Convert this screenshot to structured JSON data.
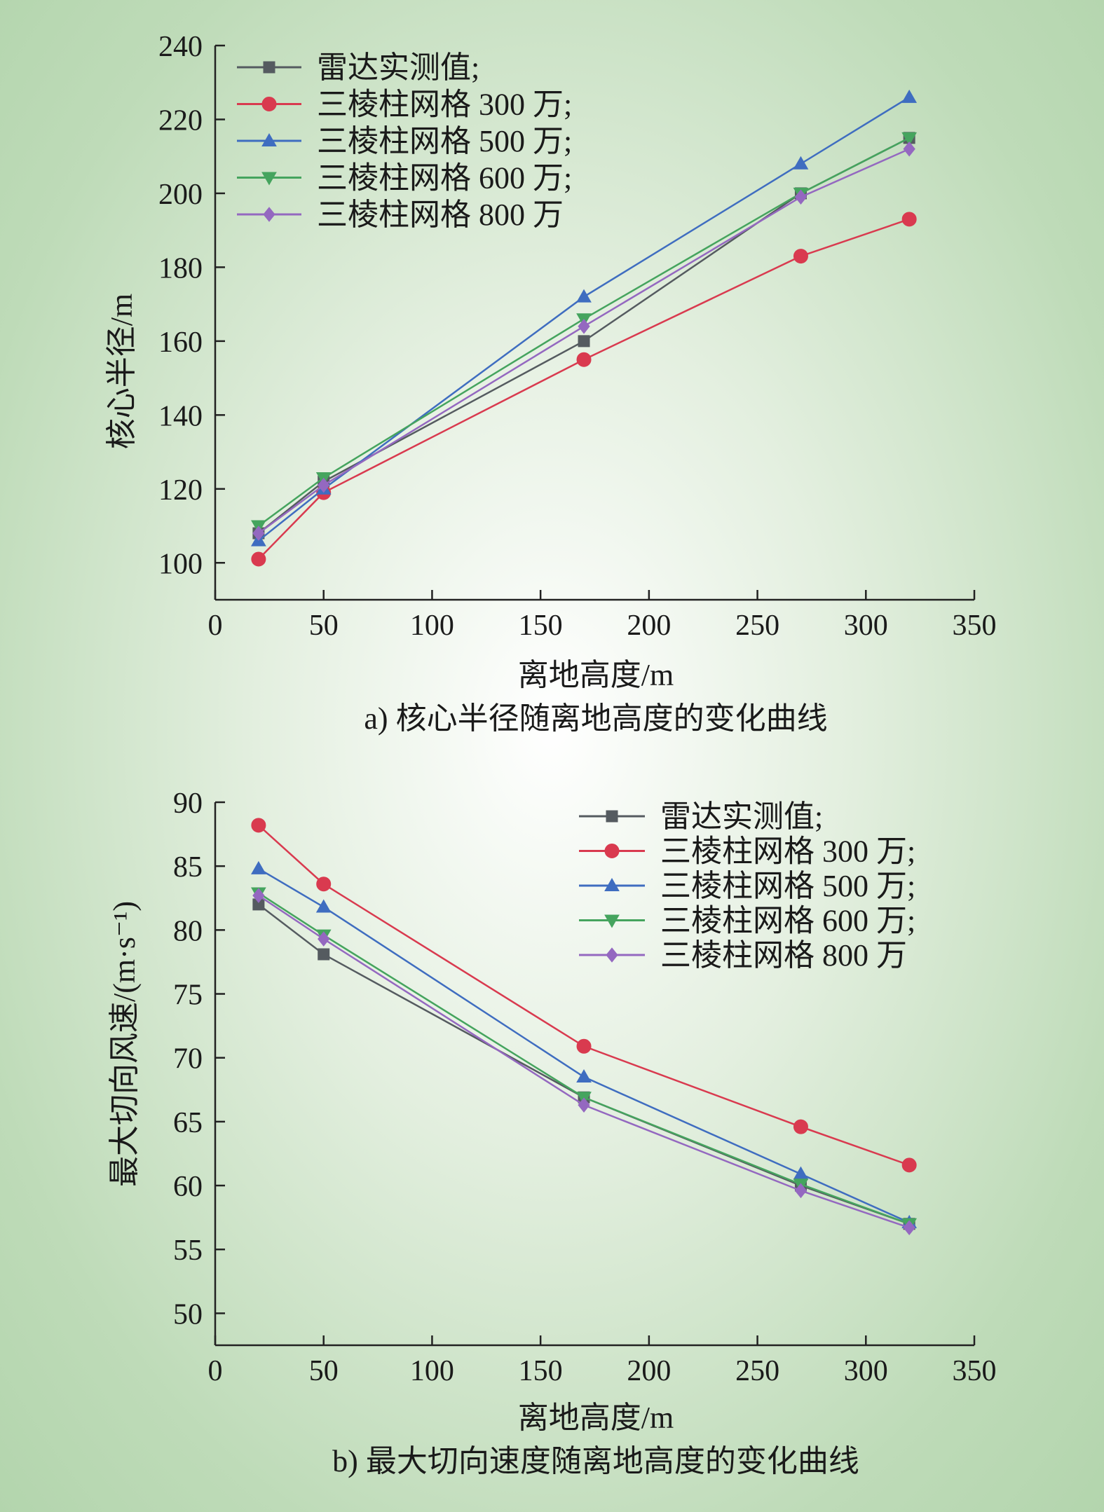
{
  "chart_data": [
    {
      "type": "line",
      "caption": "a) 核心半径随离地高度的变化曲线",
      "xlabel": "离地高度/m",
      "ylabel": "核心半径/m",
      "xlim": [
        0,
        350
      ],
      "ylim": [
        90,
        240
      ],
      "xticks": [
        0,
        50,
        100,
        150,
        200,
        250,
        300,
        350
      ],
      "yticks": [
        100,
        120,
        140,
        160,
        180,
        200,
        220,
        240
      ],
      "x": [
        20,
        50,
        170,
        270,
        320
      ],
      "legend_position": "top-left",
      "grid": false,
      "series": [
        {
          "name": "雷达实测值;",
          "color": "#555b60",
          "marker": "square",
          "values": [
            108,
            122,
            160,
            200,
            215
          ]
        },
        {
          "name": "三棱柱网格 300 万;",
          "color": "#d93a4f",
          "marker": "circle",
          "values": [
            101,
            119,
            155,
            183,
            193
          ]
        },
        {
          "name": "三棱柱网格 500 万;",
          "color": "#3f6dc0",
          "marker": "triangle-up",
          "values": [
            106,
            120,
            172,
            208,
            226
          ]
        },
        {
          "name": "三棱柱网格 600 万;",
          "color": "#45a45e",
          "marker": "triangle-down",
          "values": [
            110,
            123,
            166,
            200,
            215
          ]
        },
        {
          "name": "三棱柱网格 800 万",
          "color": "#9468c0",
          "marker": "diamond",
          "values": [
            108,
            121,
            164,
            199,
            212
          ]
        }
      ]
    },
    {
      "type": "line",
      "caption": "b) 最大切向速度随离地高度的变化曲线",
      "xlabel": "离地高度/m",
      "ylabel": "最大切向风速/(m·s⁻¹)",
      "xlim": [
        0,
        350
      ],
      "ylim": [
        47.5,
        90
      ],
      "xticks": [
        0,
        50,
        100,
        150,
        200,
        250,
        300,
        350
      ],
      "yticks": [
        50,
        55,
        60,
        65,
        70,
        75,
        80,
        85,
        90
      ],
      "x": [
        20,
        50,
        170,
        270,
        320
      ],
      "legend_position": "top-right",
      "grid": false,
      "series": [
        {
          "name": "雷达实测值;",
          "color": "#555b60",
          "marker": "square",
          "values": [
            82.0,
            78.1,
            66.9,
            60.0,
            57.0
          ]
        },
        {
          "name": "三棱柱网格 300 万;",
          "color": "#d93a4f",
          "marker": "circle",
          "values": [
            88.2,
            83.6,
            70.9,
            64.6,
            61.6
          ]
        },
        {
          "name": "三棱柱网格 500 万;",
          "color": "#3f6dc0",
          "marker": "triangle-up",
          "values": [
            84.8,
            81.8,
            68.5,
            60.9,
            57.1
          ]
        },
        {
          "name": "三棱柱网格 600 万;",
          "color": "#45a45e",
          "marker": "triangle-down",
          "values": [
            82.9,
            79.6,
            66.9,
            60.1,
            57.0
          ]
        },
        {
          "name": "三棱柱网格 800 万",
          "color": "#9468c0",
          "marker": "diamond",
          "values": [
            82.7,
            79.3,
            66.3,
            59.6,
            56.7
          ]
        }
      ]
    }
  ]
}
